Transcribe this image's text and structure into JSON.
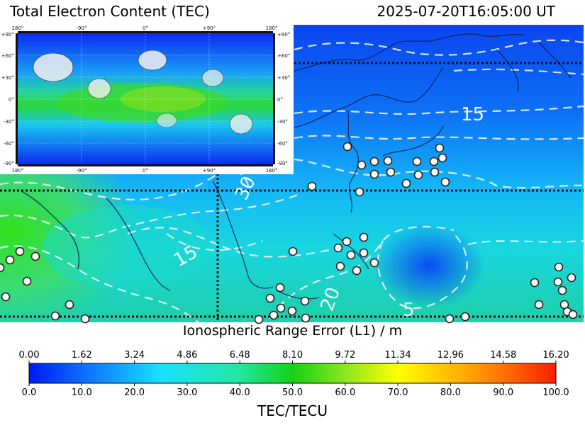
{
  "header": {
    "title": "Total Electron Content (TEC)",
    "timestamp": "2025-07-20T16:05:00 UT"
  },
  "inset": {
    "lon_labels": [
      "180°",
      "-90°",
      "0°",
      "+90°",
      "180°"
    ],
    "lat_labels": [
      "+90°",
      "+60°",
      "+30°",
      "0°",
      "-30°",
      "-60°",
      "-90°"
    ]
  },
  "regional_map": {
    "contour_labels": [
      "15",
      "30",
      "15",
      "20",
      "5"
    ]
  },
  "range_scale": {
    "title": "Ionospheric Range Error (L1) / m",
    "ticks": [
      "0.00",
      "1.62",
      "3.24",
      "4.86",
      "6.48",
      "8.10",
      "9.72",
      "11.34",
      "12.96",
      "14.58",
      "16.20"
    ]
  },
  "tec_scale": {
    "title": "TEC/TECU",
    "ticks": [
      "0.0",
      "10.0",
      "20.0",
      "30.0",
      "40.0",
      "50.0",
      "60.0",
      "70.0",
      "80.0",
      "90.0",
      "100.0"
    ]
  },
  "colors": {
    "low": "#0019f0",
    "mid": "#19e1ff",
    "green": "#14d214",
    "yellow": "#ffff00",
    "high": "#ff1e00"
  }
}
